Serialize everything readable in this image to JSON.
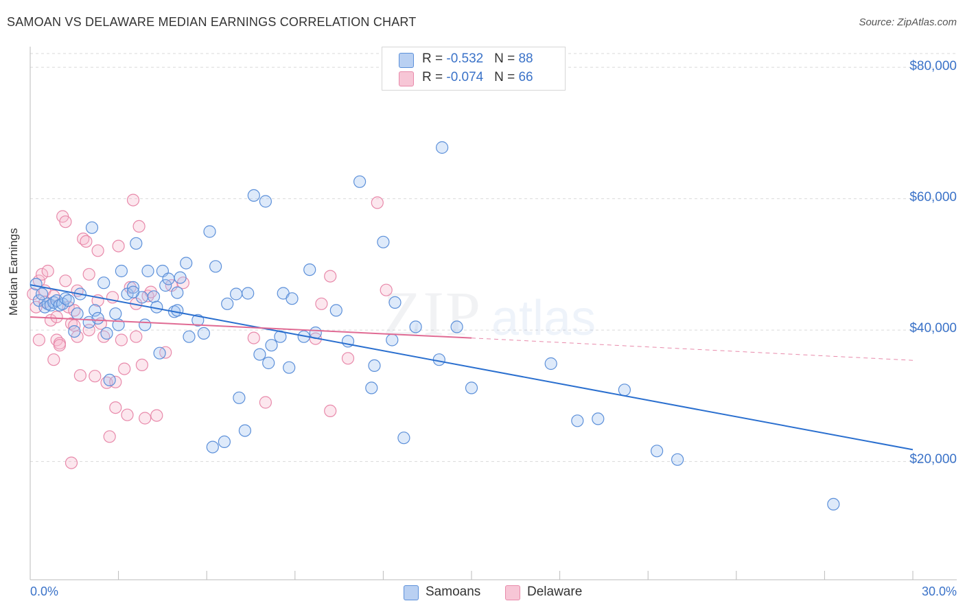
{
  "title": "SAMOAN VS DELAWARE MEDIAN EARNINGS CORRELATION CHART",
  "source": "Source: ZipAtlas.com",
  "legend_top": [
    {
      "r_label": "R = ",
      "r_value": "-0.532",
      "n_label": "N = ",
      "n_value": "88"
    },
    {
      "r_label": "R = ",
      "r_value": "-0.074",
      "n_label": "N = ",
      "n_value": "66"
    }
  ],
  "chart_data": {
    "type": "scatter",
    "title": "SAMOAN VS DELAWARE MEDIAN EARNINGS CORRELATION CHART",
    "xlabel": "",
    "ylabel": "Median Earnings",
    "xlim": [
      0,
      30
    ],
    "ylim": [
      2000,
      86000
    ],
    "x_tick_labels": [
      "0.0%",
      "30.0%"
    ],
    "y_ticks": [
      20000,
      40000,
      60000,
      80000
    ],
    "y_tick_labels": [
      "$20,000",
      "$40,000",
      "$60,000",
      "$80,000"
    ],
    "grid": true,
    "legend_position": "bottom",
    "colors": {
      "samoans": "#5b8fd9",
      "delaware": "#e889aa",
      "samoans_line": "#2a6fcf",
      "delaware_line": "#e06a93"
    },
    "series": [
      {
        "name": "Samoans",
        "color": "#5b8fd9",
        "trend": {
          "x0": 0.0,
          "y0": 46900,
          "x1": 30.0,
          "y1": 21800
        },
        "points": [
          [
            0.2,
            47000
          ],
          [
            0.3,
            44500
          ],
          [
            0.4,
            45500
          ],
          [
            0.5,
            43500
          ],
          [
            0.6,
            44000
          ],
          [
            0.7,
            43800
          ],
          [
            0.8,
            44200
          ],
          [
            0.9,
            44500
          ],
          [
            1.0,
            43800
          ],
          [
            1.1,
            44000
          ],
          [
            1.2,
            44800
          ],
          [
            1.3,
            44500
          ],
          [
            1.5,
            39800
          ],
          [
            1.6,
            42500
          ],
          [
            1.7,
            45500
          ],
          [
            2.0,
            41200
          ],
          [
            2.1,
            55600
          ],
          [
            2.2,
            43000
          ],
          [
            2.3,
            41800
          ],
          [
            2.5,
            47200
          ],
          [
            2.6,
            39500
          ],
          [
            2.9,
            42500
          ],
          [
            3.0,
            40800
          ],
          [
            3.1,
            49000
          ],
          [
            3.3,
            45500
          ],
          [
            3.5,
            46500
          ],
          [
            3.6,
            53200
          ],
          [
            3.8,
            45000
          ],
          [
            3.9,
            40800
          ],
          [
            4.0,
            49000
          ],
          [
            4.2,
            45100
          ],
          [
            4.3,
            43500
          ],
          [
            4.4,
            36500
          ],
          [
            4.5,
            49000
          ],
          [
            4.6,
            46800
          ],
          [
            4.7,
            47800
          ],
          [
            4.9,
            42800
          ],
          [
            5.0,
            45700
          ],
          [
            5.1,
            48000
          ],
          [
            5.3,
            50200
          ],
          [
            5.4,
            39000
          ],
          [
            5.7,
            41500
          ],
          [
            5.9,
            39500
          ],
          [
            6.1,
            55000
          ],
          [
            6.2,
            22200
          ],
          [
            6.3,
            49700
          ],
          [
            6.6,
            23000
          ],
          [
            6.7,
            44000
          ],
          [
            7.0,
            45500
          ],
          [
            7.1,
            29700
          ],
          [
            7.3,
            24700
          ],
          [
            7.4,
            45600
          ],
          [
            7.6,
            60500
          ],
          [
            7.8,
            36300
          ],
          [
            8.0,
            59600
          ],
          [
            8.1,
            35000
          ],
          [
            8.2,
            37700
          ],
          [
            8.5,
            39000
          ],
          [
            8.6,
            45600
          ],
          [
            8.8,
            34300
          ],
          [
            9.3,
            39000
          ],
          [
            9.5,
            49200
          ],
          [
            9.7,
            39600
          ],
          [
            10.4,
            43000
          ],
          [
            10.8,
            38300
          ],
          [
            11.2,
            62600
          ],
          [
            11.6,
            31200
          ],
          [
            11.7,
            34600
          ],
          [
            12.0,
            53400
          ],
          [
            12.3,
            38500
          ],
          [
            12.7,
            23600
          ],
          [
            13.1,
            40500
          ],
          [
            13.9,
            35500
          ],
          [
            14.0,
            67800
          ],
          [
            15.0,
            31200
          ],
          [
            17.7,
            34900
          ],
          [
            18.6,
            26200
          ],
          [
            19.3,
            26500
          ],
          [
            20.2,
            30900
          ],
          [
            21.3,
            21600
          ],
          [
            22.0,
            20300
          ],
          [
            27.3,
            13500
          ],
          [
            2.7,
            32400
          ],
          [
            5.0,
            43000
          ],
          [
            3.5,
            45800
          ],
          [
            12.4,
            44200
          ],
          [
            8.9,
            44800
          ],
          [
            14.5,
            40500
          ]
        ]
      },
      {
        "name": "Delaware",
        "color": "#e889aa",
        "trend": {
          "x0": 0.0,
          "y0": 42000,
          "x1": 15.0,
          "y1": 38800,
          "x_dash_end": 30.0,
          "y_dash_end": 35400
        },
        "points": [
          [
            0.1,
            45500
          ],
          [
            0.2,
            43500
          ],
          [
            0.3,
            47500
          ],
          [
            0.4,
            48500
          ],
          [
            0.5,
            46000
          ],
          [
            0.6,
            49000
          ],
          [
            0.7,
            41500
          ],
          [
            0.8,
            45200
          ],
          [
            0.9,
            38500
          ],
          [
            1.0,
            38000
          ],
          [
            1.1,
            57300
          ],
          [
            1.2,
            56500
          ],
          [
            1.3,
            43500
          ],
          [
            1.4,
            41000
          ],
          [
            1.5,
            40700
          ],
          [
            1.6,
            39000
          ],
          [
            1.7,
            33100
          ],
          [
            1.8,
            53900
          ],
          [
            1.9,
            53500
          ],
          [
            2.0,
            48500
          ],
          [
            2.2,
            33000
          ],
          [
            2.3,
            52100
          ],
          [
            2.4,
            41000
          ],
          [
            2.5,
            39000
          ],
          [
            2.6,
            32000
          ],
          [
            2.7,
            23800
          ],
          [
            2.8,
            45000
          ],
          [
            2.9,
            28200
          ],
          [
            3.0,
            52800
          ],
          [
            3.1,
            38500
          ],
          [
            3.2,
            34100
          ],
          [
            3.3,
            27100
          ],
          [
            3.4,
            46500
          ],
          [
            3.5,
            59800
          ],
          [
            3.6,
            39000
          ],
          [
            3.7,
            55800
          ],
          [
            3.8,
            34700
          ],
          [
            3.9,
            26600
          ],
          [
            4.0,
            45200
          ],
          [
            4.1,
            45800
          ],
          [
            4.3,
            27000
          ],
          [
            4.6,
            36600
          ],
          [
            4.8,
            46800
          ],
          [
            0.3,
            38500
          ],
          [
            0.8,
            35500
          ],
          [
            1.0,
            37700
          ],
          [
            1.4,
            19800
          ],
          [
            1.6,
            46000
          ],
          [
            2.0,
            40000
          ],
          [
            2.9,
            32100
          ],
          [
            5.2,
            47200
          ],
          [
            9.7,
            38700
          ],
          [
            9.9,
            44000
          ],
          [
            10.2,
            48200
          ],
          [
            10.8,
            35700
          ],
          [
            11.8,
            59400
          ],
          [
            12.1,
            46100
          ],
          [
            7.6,
            38800
          ],
          [
            8.0,
            29000
          ],
          [
            10.2,
            27700
          ],
          [
            0.5,
            44300
          ],
          [
            1.2,
            47500
          ],
          [
            2.3,
            44500
          ],
          [
            0.9,
            42000
          ],
          [
            3.6,
            44000
          ],
          [
            1.5,
            43000
          ]
        ]
      }
    ]
  },
  "bottom_legend": {
    "samoans": "Samoans",
    "delaware": "Delaware"
  },
  "watermark": "ZIPatlas"
}
